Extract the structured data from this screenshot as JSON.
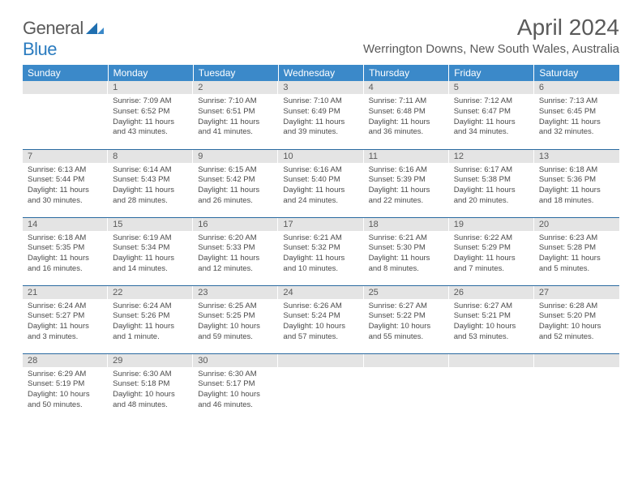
{
  "brand": {
    "part1": "General",
    "part2": "Blue"
  },
  "title": "April 2024",
  "location": "Werrington Downs, New South Wales, Australia",
  "colors": {
    "header_bg": "#3b89c9",
    "header_text": "#ffffff",
    "daynum_bg": "#e4e4e4",
    "row_border": "#2a6aa0",
    "text": "#5a5a5a",
    "body_text": "#4a4a4a"
  },
  "typography": {
    "title_fontsize": 28,
    "location_fontsize": 15,
    "dayhead_fontsize": 12,
    "daynum_fontsize": 11,
    "body_fontsize": 9.5
  },
  "weekdays": [
    "Sunday",
    "Monday",
    "Tuesday",
    "Wednesday",
    "Thursday",
    "Friday",
    "Saturday"
  ],
  "weeks": [
    [
      null,
      {
        "n": "1",
        "sunrise": "7:09 AM",
        "sunset": "6:52 PM",
        "daylight": "11 hours and 43 minutes."
      },
      {
        "n": "2",
        "sunrise": "7:10 AM",
        "sunset": "6:51 PM",
        "daylight": "11 hours and 41 minutes."
      },
      {
        "n": "3",
        "sunrise": "7:10 AM",
        "sunset": "6:49 PM",
        "daylight": "11 hours and 39 minutes."
      },
      {
        "n": "4",
        "sunrise": "7:11 AM",
        "sunset": "6:48 PM",
        "daylight": "11 hours and 36 minutes."
      },
      {
        "n": "5",
        "sunrise": "7:12 AM",
        "sunset": "6:47 PM",
        "daylight": "11 hours and 34 minutes."
      },
      {
        "n": "6",
        "sunrise": "7:13 AM",
        "sunset": "6:45 PM",
        "daylight": "11 hours and 32 minutes."
      }
    ],
    [
      {
        "n": "7",
        "sunrise": "6:13 AM",
        "sunset": "5:44 PM",
        "daylight": "11 hours and 30 minutes."
      },
      {
        "n": "8",
        "sunrise": "6:14 AM",
        "sunset": "5:43 PM",
        "daylight": "11 hours and 28 minutes."
      },
      {
        "n": "9",
        "sunrise": "6:15 AM",
        "sunset": "5:42 PM",
        "daylight": "11 hours and 26 minutes."
      },
      {
        "n": "10",
        "sunrise": "6:16 AM",
        "sunset": "5:40 PM",
        "daylight": "11 hours and 24 minutes."
      },
      {
        "n": "11",
        "sunrise": "6:16 AM",
        "sunset": "5:39 PM",
        "daylight": "11 hours and 22 minutes."
      },
      {
        "n": "12",
        "sunrise": "6:17 AM",
        "sunset": "5:38 PM",
        "daylight": "11 hours and 20 minutes."
      },
      {
        "n": "13",
        "sunrise": "6:18 AM",
        "sunset": "5:36 PM",
        "daylight": "11 hours and 18 minutes."
      }
    ],
    [
      {
        "n": "14",
        "sunrise": "6:18 AM",
        "sunset": "5:35 PM",
        "daylight": "11 hours and 16 minutes."
      },
      {
        "n": "15",
        "sunrise": "6:19 AM",
        "sunset": "5:34 PM",
        "daylight": "11 hours and 14 minutes."
      },
      {
        "n": "16",
        "sunrise": "6:20 AM",
        "sunset": "5:33 PM",
        "daylight": "11 hours and 12 minutes."
      },
      {
        "n": "17",
        "sunrise": "6:21 AM",
        "sunset": "5:32 PM",
        "daylight": "11 hours and 10 minutes."
      },
      {
        "n": "18",
        "sunrise": "6:21 AM",
        "sunset": "5:30 PM",
        "daylight": "11 hours and 8 minutes."
      },
      {
        "n": "19",
        "sunrise": "6:22 AM",
        "sunset": "5:29 PM",
        "daylight": "11 hours and 7 minutes."
      },
      {
        "n": "20",
        "sunrise": "6:23 AM",
        "sunset": "5:28 PM",
        "daylight": "11 hours and 5 minutes."
      }
    ],
    [
      {
        "n": "21",
        "sunrise": "6:24 AM",
        "sunset": "5:27 PM",
        "daylight": "11 hours and 3 minutes."
      },
      {
        "n": "22",
        "sunrise": "6:24 AM",
        "sunset": "5:26 PM",
        "daylight": "11 hours and 1 minute."
      },
      {
        "n": "23",
        "sunrise": "6:25 AM",
        "sunset": "5:25 PM",
        "daylight": "10 hours and 59 minutes."
      },
      {
        "n": "24",
        "sunrise": "6:26 AM",
        "sunset": "5:24 PM",
        "daylight": "10 hours and 57 minutes."
      },
      {
        "n": "25",
        "sunrise": "6:27 AM",
        "sunset": "5:22 PM",
        "daylight": "10 hours and 55 minutes."
      },
      {
        "n": "26",
        "sunrise": "6:27 AM",
        "sunset": "5:21 PM",
        "daylight": "10 hours and 53 minutes."
      },
      {
        "n": "27",
        "sunrise": "6:28 AM",
        "sunset": "5:20 PM",
        "daylight": "10 hours and 52 minutes."
      }
    ],
    [
      {
        "n": "28",
        "sunrise": "6:29 AM",
        "sunset": "5:19 PM",
        "daylight": "10 hours and 50 minutes."
      },
      {
        "n": "29",
        "sunrise": "6:30 AM",
        "sunset": "5:18 PM",
        "daylight": "10 hours and 48 minutes."
      },
      {
        "n": "30",
        "sunrise": "6:30 AM",
        "sunset": "5:17 PM",
        "daylight": "10 hours and 46 minutes."
      },
      null,
      null,
      null,
      null
    ]
  ],
  "labels": {
    "sunrise": "Sunrise:",
    "sunset": "Sunset:",
    "daylight": "Daylight:"
  }
}
